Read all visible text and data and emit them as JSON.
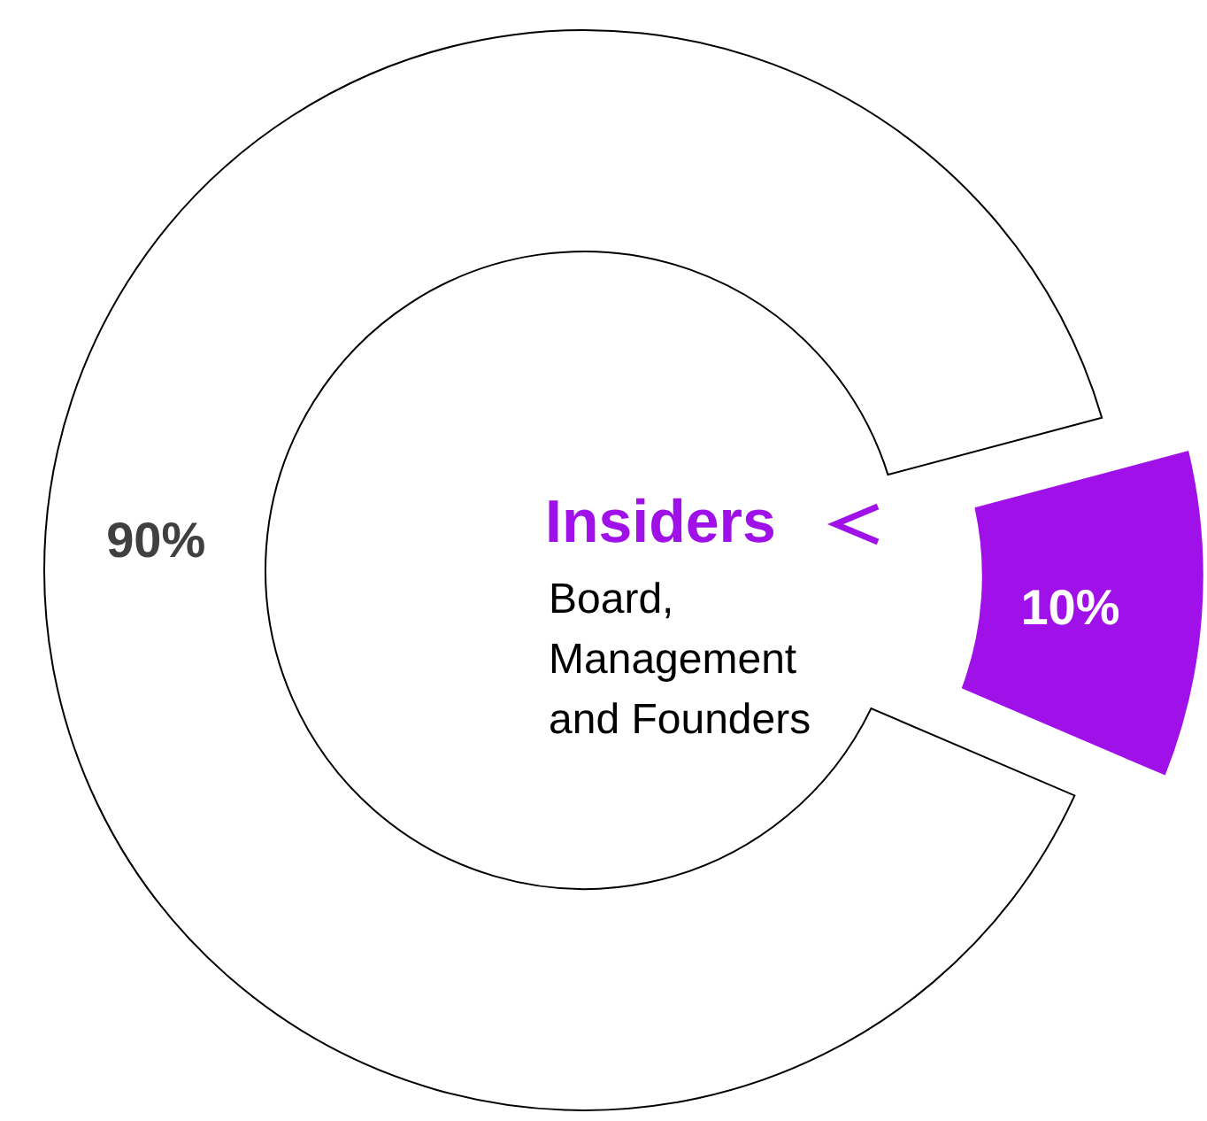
{
  "chart_data": {
    "type": "donut",
    "categories": [
      null,
      "Insiders"
    ],
    "values": [
      90,
      10
    ],
    "colors": [
      "#ffffff",
      "#a010e8"
    ],
    "value_labels": [
      "90%",
      "10%"
    ],
    "annotations": [
      "Board, Management and Founders"
    ]
  }
}
